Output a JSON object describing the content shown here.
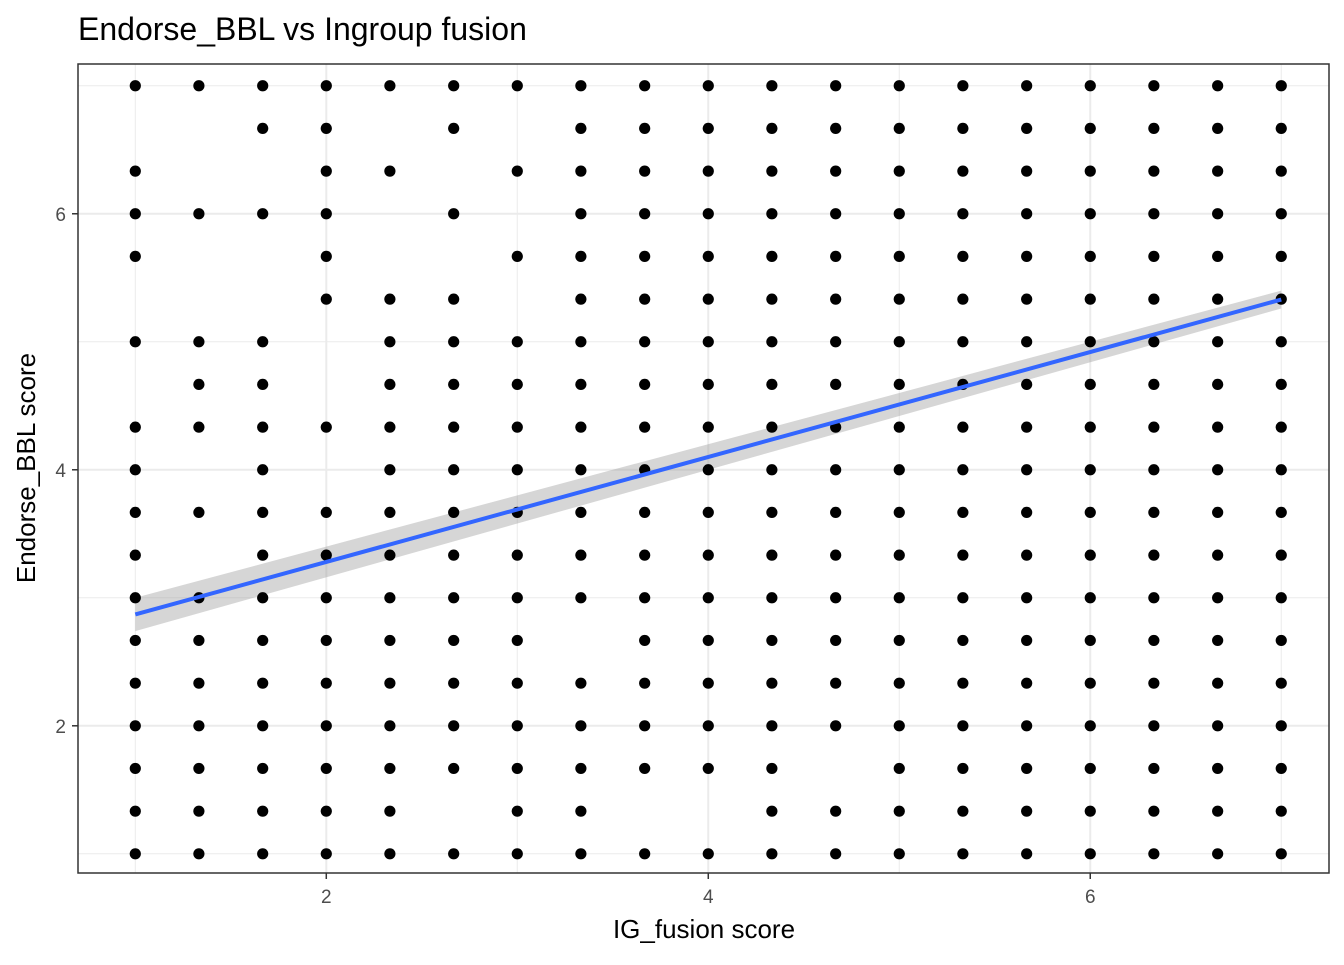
{
  "chart_data": {
    "type": "scatter",
    "title": "Endorse_BBL vs Ingroup fusion",
    "xlabel": "IG_fusion score",
    "ylabel": "Endorse_BBL score",
    "xlim": [
      0.7,
      7.25
    ],
    "ylim": [
      0.85,
      7.17
    ],
    "x_ticks": [
      2,
      4,
      6
    ],
    "y_ticks": [
      2,
      4,
      6
    ],
    "grid": true,
    "legend": "none",
    "point_color": "#000000",
    "panel_border_color": "#333333",
    "grid_color": "#ebebeb",
    "x_levels": [
      1,
      1.333,
      1.667,
      2,
      2.333,
      2.667,
      3,
      3.333,
      3.667,
      4,
      4.333,
      4.667,
      5,
      5.333,
      5.667,
      6,
      6.333,
      6.667,
      7
    ],
    "y_levels": [
      1,
      1.333,
      1.667,
      2,
      2.333,
      2.667,
      3,
      3.333,
      3.667,
      4,
      4.333,
      4.667,
      5,
      5.333,
      5.667,
      6,
      6.333,
      6.667,
      7
    ],
    "points_by_x": [
      {
        "x": 1,
        "y": [
          1,
          1.333,
          1.667,
          2,
          2.333,
          2.667,
          3,
          3.333,
          3.667,
          4,
          4.333,
          5,
          5.667,
          6,
          6.333,
          7
        ]
      },
      {
        "x": 1.333,
        "y": [
          1,
          1.333,
          1.667,
          2,
          2.333,
          2.667,
          3,
          3.667,
          4.333,
          4.667,
          5,
          6,
          7
        ]
      },
      {
        "x": 1.667,
        "y": [
          1,
          1.333,
          1.667,
          2,
          2.333,
          2.667,
          3,
          3.333,
          3.667,
          4,
          4.333,
          4.667,
          5,
          6,
          6.667,
          7
        ]
      },
      {
        "x": 2,
        "y": [
          1,
          1.333,
          1.667,
          2,
          2.333,
          2.667,
          3,
          3.333,
          3.667,
          4.333,
          5.333,
          5.667,
          6,
          6.333,
          6.667,
          7
        ]
      },
      {
        "x": 2.333,
        "y": [
          1,
          1.333,
          1.667,
          2,
          2.333,
          2.667,
          3,
          3.333,
          3.667,
          4,
          4.333,
          4.667,
          5,
          5.333,
          6.333,
          7
        ]
      },
      {
        "x": 2.667,
        "y": [
          1,
          1.667,
          2,
          2.333,
          2.667,
          3,
          3.333,
          3.667,
          4,
          4.333,
          4.667,
          5,
          5.333,
          6,
          6.667,
          7
        ]
      },
      {
        "x": 3,
        "y": [
          1,
          1.333,
          1.667,
          2,
          2.333,
          2.667,
          3,
          3.333,
          3.667,
          4,
          4.333,
          4.667,
          5,
          5.667,
          6.333,
          7
        ]
      },
      {
        "x": 3.333,
        "y": [
          1,
          1.333,
          1.667,
          2,
          2.333,
          3,
          3.333,
          3.667,
          4,
          4.333,
          4.667,
          5,
          5.333,
          5.667,
          6,
          6.333,
          6.667,
          7
        ]
      },
      {
        "x": 3.667,
        "y": [
          1,
          1.667,
          2,
          2.333,
          2.667,
          3,
          3.333,
          3.667,
          4,
          4.333,
          4.667,
          5,
          5.333,
          5.667,
          6,
          6.333,
          6.667,
          7
        ]
      },
      {
        "x": 4,
        "y": [
          1,
          1.667,
          2,
          2.333,
          2.667,
          3,
          3.333,
          3.667,
          4,
          4.333,
          4.667,
          5,
          5.333,
          5.667,
          6,
          6.333,
          6.667,
          7
        ]
      },
      {
        "x": 4.333,
        "y": [
          1,
          1.333,
          1.667,
          2,
          2.333,
          2.667,
          3,
          3.333,
          3.667,
          4,
          4.333,
          4.667,
          5,
          5.333,
          5.667,
          6,
          6.333,
          6.667,
          7
        ]
      },
      {
        "x": 4.667,
        "y": [
          1,
          1.333,
          2,
          2.333,
          2.667,
          3,
          3.333,
          3.667,
          4,
          4.333,
          4.667,
          5,
          5.333,
          5.667,
          6,
          6.333,
          6.667,
          7
        ]
      },
      {
        "x": 5,
        "y": [
          1,
          1.333,
          1.667,
          2,
          2.333,
          2.667,
          3,
          3.333,
          3.667,
          4,
          4.333,
          4.667,
          5,
          5.333,
          5.667,
          6,
          6.333,
          6.667,
          7
        ]
      },
      {
        "x": 5.333,
        "y": [
          1,
          1.333,
          1.667,
          2,
          2.333,
          2.667,
          3,
          3.333,
          3.667,
          4,
          4.333,
          4.667,
          5,
          5.333,
          5.667,
          6,
          6.333,
          6.667,
          7
        ]
      },
      {
        "x": 5.667,
        "y": [
          1,
          1.333,
          1.667,
          2,
          2.333,
          2.667,
          3,
          3.333,
          3.667,
          4,
          4.333,
          4.667,
          5,
          5.333,
          5.667,
          6,
          6.333,
          6.667,
          7
        ]
      },
      {
        "x": 6,
        "y": [
          1,
          1.333,
          1.667,
          2,
          2.333,
          2.667,
          3,
          3.333,
          3.667,
          4,
          4.333,
          4.667,
          5,
          5.333,
          5.667,
          6,
          6.333,
          6.667,
          7
        ]
      },
      {
        "x": 6.333,
        "y": [
          1,
          1.333,
          1.667,
          2,
          2.333,
          2.667,
          3,
          3.333,
          3.667,
          4,
          4.333,
          4.667,
          5,
          5.333,
          5.667,
          6,
          6.333,
          6.667,
          7
        ]
      },
      {
        "x": 6.667,
        "y": [
          1,
          1.333,
          1.667,
          2,
          2.333,
          2.667,
          3,
          3.333,
          3.667,
          4,
          4.333,
          4.667,
          5,
          5.333,
          5.667,
          6,
          6.333,
          6.667,
          7
        ]
      },
      {
        "x": 7,
        "y": [
          1,
          1.333,
          1.667,
          2,
          2.333,
          2.667,
          3,
          3.333,
          3.667,
          4,
          4.333,
          4.667,
          5,
          5.333,
          5.667,
          6,
          6.333,
          6.667,
          7
        ]
      }
    ],
    "smooth": {
      "method": "linear",
      "color": "#3366ff",
      "ribbon_color": "#999999",
      "x": [
        1,
        7
      ],
      "y": [
        2.87,
        5.33
      ],
      "ci_lower": [
        2.74,
        5.26
      ],
      "ci_upper": [
        3.0,
        5.4
      ]
    }
  }
}
